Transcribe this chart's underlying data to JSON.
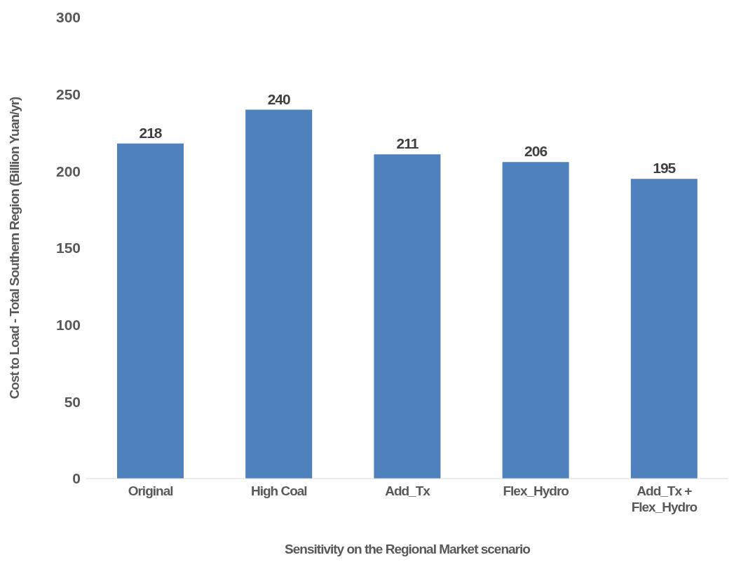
{
  "chart_data": {
    "type": "bar",
    "xlabel": "Sensitivity on the Regional Market scenario",
    "ylabel": "Cost to Load - Total Southern Region (Billion Yuan/yr)",
    "categories": [
      "Original",
      "High Coal",
      "Add_Tx",
      "Flex_Hydro",
      "Add_Tx + Flex_Hydro"
    ],
    "values": [
      218,
      240,
      211,
      206,
      195
    ],
    "color": "#4f81bd",
    "ylim": [
      0,
      300
    ],
    "yticks": [
      0,
      50,
      100,
      150,
      200,
      250,
      300
    ],
    "data_labels": true
  }
}
